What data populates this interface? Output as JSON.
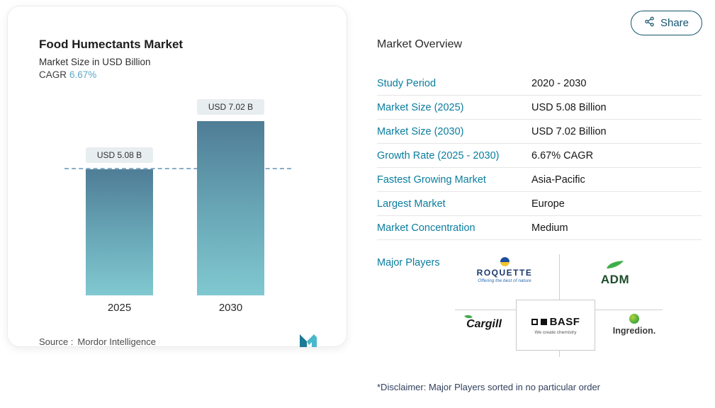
{
  "share": {
    "label": "Share"
  },
  "chart": {
    "title": "Food Humectants Market",
    "subtitle": "Market Size in USD Billion",
    "cagr_label": "CAGR",
    "cagr_value": "6.67%",
    "source_label": "Source :",
    "source_value": "Mordor Intelligence"
  },
  "chart_data": {
    "type": "bar",
    "title": "Food Humectants Market",
    "subtitle": "Market Size in USD Billion",
    "cagr": "6.67%",
    "categories": [
      "2025",
      "2030"
    ],
    "values": [
      5.08,
      7.02
    ],
    "value_labels": [
      "USD 5.08 B",
      "USD 7.02 B"
    ],
    "unit": "USD Billion",
    "ylim": [
      0,
      8
    ],
    "grid": false,
    "reference_line_at": 5.08
  },
  "overview": {
    "title": "Market Overview",
    "rows": [
      {
        "label": "Study Period",
        "value": "2020 - 2030"
      },
      {
        "label": "Market Size (2025)",
        "value": "USD 5.08 Billion"
      },
      {
        "label": "Market Size (2030)",
        "value": "USD 7.02 Billion"
      },
      {
        "label": "Growth Rate (2025 - 2030)",
        "value": "6.67% CAGR"
      },
      {
        "label": "Fastest Growing Market",
        "value": "Asia-Pacific"
      },
      {
        "label": "Largest Market",
        "value": "Europe"
      },
      {
        "label": "Market Concentration",
        "value": "Medium"
      }
    ],
    "major_players_label": "Major Players",
    "players": [
      {
        "name": "ROQUETTE",
        "tagline": "Offering the best of nature"
      },
      {
        "name": "ADM"
      },
      {
        "name": "BASF",
        "tagline": "We create chemistry"
      },
      {
        "name": "Cargill"
      },
      {
        "name": "Ingredion."
      }
    ],
    "disclaimer": "*Disclaimer: Major Players sorted in no particular order"
  }
}
